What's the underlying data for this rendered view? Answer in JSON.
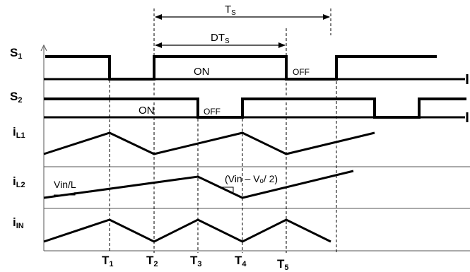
{
  "dimensions": {
    "period": {
      "main": "T",
      "sub": "S"
    },
    "duty": {
      "main": "DT",
      "sub": "S"
    }
  },
  "signals": [
    {
      "key": "s1",
      "main": "S",
      "sub": "1"
    },
    {
      "key": "s2",
      "main": "S",
      "sub": "2"
    },
    {
      "key": "il1",
      "main": "i",
      "sub": "L1"
    },
    {
      "key": "il2",
      "main": "i",
      "sub": "L2"
    },
    {
      "key": "iin",
      "main": "i",
      "sub": "IN"
    }
  ],
  "states": {
    "s1_on": "ON",
    "s1_off": "OFF",
    "s2_on": "ON",
    "s2_off": "OFF"
  },
  "slopes": {
    "rise": "Vin/L",
    "fall": "(Vin – Vₒ/ 2)"
  },
  "time_marks": [
    {
      "main": "T",
      "sub": "1"
    },
    {
      "main": "T",
      "sub": "2"
    },
    {
      "main": "T",
      "sub": "3"
    },
    {
      "main": "T",
      "sub": "4"
    },
    {
      "main": "T",
      "sub": "5"
    }
  ],
  "colors": {
    "trace": "#000000",
    "grid": "#555555"
  }
}
